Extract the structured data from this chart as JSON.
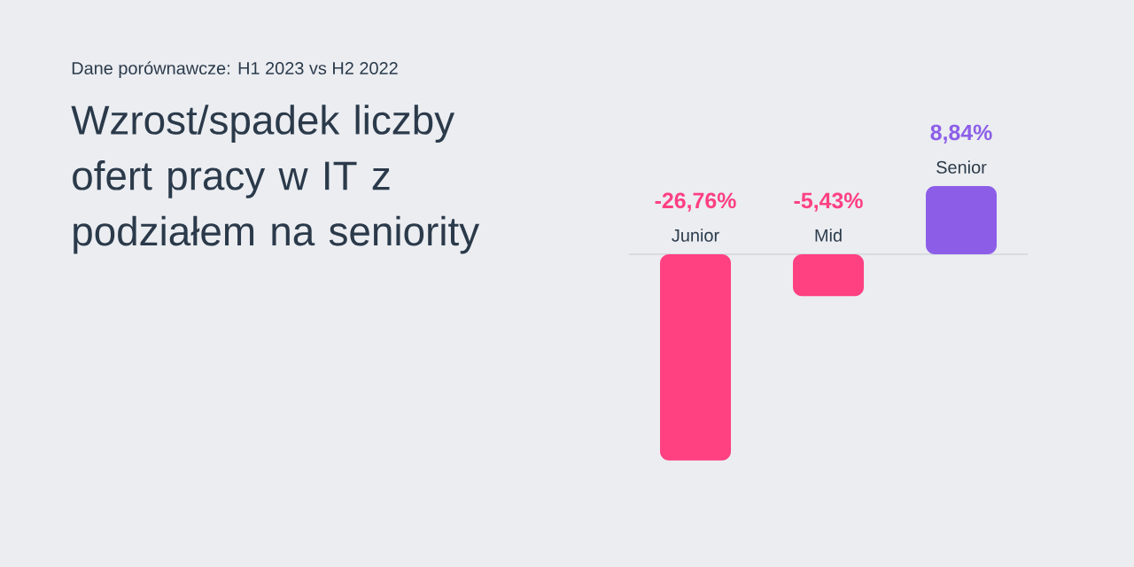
{
  "chart_data": {
    "type": "bar",
    "subtitle": "Dane porównawcze: H1 2023 vs H2 2022",
    "title": "Wzrost/spadek liczby ofert pracy w IT z podziałem na seniority",
    "categories": [
      "Junior",
      "Mid",
      "Senior"
    ],
    "values": [
      -26.76,
      -5.43,
      8.84
    ],
    "colors": [
      "#ff4081",
      "#ff4081",
      "#8c5ee8"
    ],
    "value_labels": [
      "-26,76%",
      "-5,43%",
      "8,84%"
    ]
  }
}
